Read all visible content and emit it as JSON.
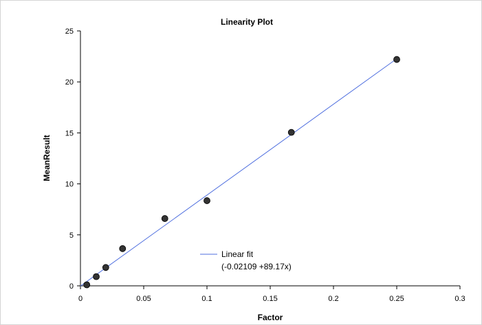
{
  "chart_data": {
    "type": "scatter",
    "title": "Linearity Plot",
    "xlabel": "Factor",
    "ylabel": "MeanResult",
    "xlim": [
      0,
      0.3
    ],
    "ylim": [
      0,
      25
    ],
    "x_ticks": [
      "0",
      "0.05",
      "0.1",
      "0.15",
      "0.2",
      "0.25",
      "0.3"
    ],
    "y_ticks": [
      "0",
      "5",
      "10",
      "15",
      "20",
      "25"
    ],
    "grid": false,
    "legend_placement": "lower-center",
    "series": [
      {
        "type": "scatter",
        "color": "#333333",
        "x": [
          0.005,
          0.0125,
          0.02,
          0.0333,
          0.0667,
          0.1,
          0.1667,
          0.25
        ],
        "y": [
          0.1,
          0.9,
          1.8,
          3.65,
          6.6,
          8.35,
          15.05,
          22.2
        ]
      },
      {
        "type": "line",
        "name": "Linear fit",
        "color": "#4f6fdf",
        "intercept": -0.02109,
        "slope": 89.17,
        "x_range": [
          0,
          0.25
        ]
      }
    ],
    "legend": {
      "line1": "Linear fit",
      "line2": "(-0.02109  +89.17x)"
    }
  }
}
